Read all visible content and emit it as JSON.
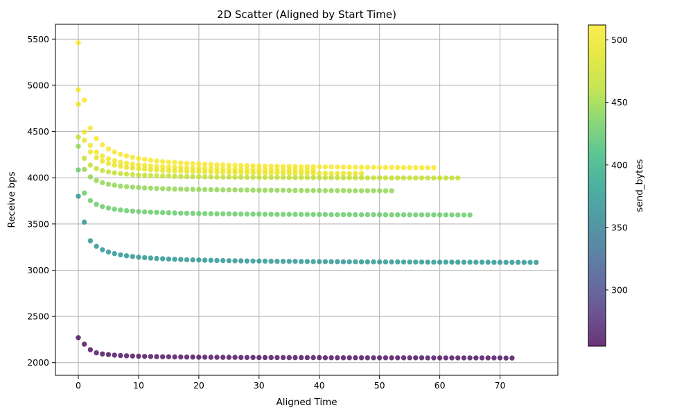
{
  "figure": {
    "title": "2D Scatter (Aligned by Start Time)",
    "background": "#ffffff"
  },
  "style": {
    "grid_color": "#b0b0b0",
    "spine_color": "#000000",
    "text_color": "#000000",
    "marker_opacity": 0.8,
    "marker_radius": 3.7
  },
  "chart_data": {
    "type": "scatter",
    "title": "2D Scatter (Aligned by Start Time)",
    "xlabel": "Aligned Time",
    "ylabel": "Receive bps",
    "grid": true,
    "xlim": [
      -3.8,
      79.6
    ],
    "ylim": [
      1863,
      5660
    ],
    "x_ticks": [
      0,
      10,
      20,
      30,
      40,
      50,
      60,
      70
    ],
    "y_ticks": [
      2000,
      2500,
      3000,
      3500,
      4000,
      4500,
      5000,
      5500
    ],
    "colorbar": {
      "label": "send_bytes",
      "vmin": 255,
      "vmax": 512,
      "ticks": [
        300,
        350,
        400,
        450,
        500
      ],
      "colormap": "viridis",
      "gradient": [
        [
          0.0,
          "#440154"
        ],
        [
          0.1,
          "#482878"
        ],
        [
          0.2,
          "#3e4989"
        ],
        [
          0.3,
          "#31688e"
        ],
        [
          0.4,
          "#26828e"
        ],
        [
          0.5,
          "#1f9e89"
        ],
        [
          0.6,
          "#35b779"
        ],
        [
          0.7,
          "#6ece58"
        ],
        [
          0.8,
          "#b5de2b"
        ],
        [
          0.9,
          "#dde318"
        ],
        [
          1.0,
          "#fde725"
        ]
      ]
    },
    "series": [
      {
        "id": "s1",
        "send_bytes": 508,
        "color": "#f8e621",
        "x_start": 0,
        "x_step": 1,
        "y": [
          5460,
          4840,
          4537,
          4424,
          4356,
          4311,
          4279,
          4254,
          4236,
          4221,
          4208,
          4198,
          4189,
          4182,
          4175,
          4170,
          4165,
          4160,
          4156,
          4153,
          4150,
          4147,
          4144,
          4141,
          4139,
          4137,
          4135,
          4133,
          4132,
          4130,
          4129,
          4127,
          4126,
          4125,
          4124,
          4123,
          4122,
          4121,
          4120,
          4119,
          4118,
          4117,
          4117,
          4116,
          4115,
          4114,
          4114,
          4113,
          4113,
          4112,
          4112,
          4111,
          4111,
          4110,
          4110,
          4109,
          4109,
          4108,
          4108,
          4108
        ]
      },
      {
        "id": "s2",
        "send_bytes": 501,
        "color": "#f1e51d",
        "x_start": 0,
        "x_step": 1,
        "y": [
          4950,
          4495,
          4350,
          4278,
          4234,
          4205,
          4184,
          4169,
          4157,
          4147,
          4139,
          4133,
          4127,
          4122,
          4118,
          4114,
          4111,
          4108,
          4106,
          4104,
          4101,
          4100,
          4098,
          4096,
          4095,
          4093,
          4092,
          4091,
          4090,
          4089,
          4088,
          4087,
          4086,
          4086,
          4085,
          4084,
          4084,
          4083,
          4082,
          4082
        ]
      },
      {
        "id": "s3",
        "send_bytes": 494,
        "color": "#e7e419",
        "x_start": 0,
        "x_step": 1,
        "y": [
          4795,
          4405,
          4280,
          4218,
          4180,
          4155,
          4137,
          4124,
          4113,
          4105,
          4098,
          4093,
          4088,
          4084,
          4080,
          4077,
          4074,
          4072,
          4069,
          4068,
          4066,
          4064,
          4063,
          4061,
          4060,
          4059,
          4058,
          4057,
          4056,
          4055,
          4054,
          4053,
          4053,
          4052,
          4051,
          4051,
          4050,
          4050,
          4049,
          4049,
          4048,
          4048,
          4047,
          4047,
          4047,
          4046,
          4046,
          4046
        ]
      },
      {
        "id": "s4",
        "send_bytes": 466,
        "color": "#c2df23",
        "x_start": 0,
        "x_step": 1,
        "y": [
          4440,
          4210,
          4137,
          4100,
          4078,
          4063,
          4053,
          4045,
          4039,
          4034,
          4030,
          4027,
          4024,
          4021,
          4019,
          4018,
          4016,
          4014,
          4013,
          4012,
          4011,
          4010,
          4009,
          4008,
          4008,
          4007,
          4006,
          4006,
          4005,
          4005,
          4004,
          4004,
          4003,
          4003,
          4003,
          4002,
          4002,
          4002,
          4001,
          4001,
          4001,
          4000,
          4000,
          4000,
          4000,
          4000,
          3999,
          3999,
          3999,
          3999,
          3999,
          3998,
          3998,
          3998,
          3998,
          3998,
          3998,
          3998,
          3997,
          3997,
          3997,
          3997,
          3997,
          3997
        ]
      },
      {
        "id": "s5",
        "send_bytes": 448,
        "color": "#8bd348",
        "x_start": 0,
        "x_step": 1,
        "y": [
          4340,
          4090,
          4010,
          3970,
          3946,
          3930,
          3919,
          3910,
          3903,
          3898,
          3894,
          3890,
          3887,
          3884,
          3882,
          3880,
          3878,
          3877,
          3875,
          3874,
          3873,
          3872,
          3871,
          3870,
          3869,
          3868,
          3868,
          3867,
          3867,
          3866,
          3865,
          3865,
          3865,
          3864,
          3864,
          3863,
          3863,
          3863,
          3862,
          3862,
          3862,
          3861,
          3861,
          3861,
          3861,
          3860,
          3860,
          3860,
          3860,
          3860,
          3859,
          3859,
          3859
        ]
      },
      {
        "id": "s6",
        "send_bytes": 425,
        "color": "#5ec962",
        "x_start": 0,
        "x_step": 1,
        "y": [
          4085,
          3835,
          3753,
          3713,
          3688,
          3672,
          3660,
          3651,
          3644,
          3639,
          3635,
          3631,
          3628,
          3625,
          3623,
          3621,
          3619,
          3617,
          3616,
          3615,
          3613,
          3612,
          3611,
          3610,
          3610,
          3609,
          3608,
          3608,
          3607,
          3606,
          3606,
          3605,
          3605,
          3604,
          3604,
          3604,
          3603,
          3603,
          3603,
          3602,
          3602,
          3602,
          3601,
          3601,
          3601,
          3601,
          3600,
          3600,
          3600,
          3600,
          3600,
          3599,
          3599,
          3599,
          3599,
          3599,
          3598,
          3598,
          3598,
          3598,
          3598,
          3598,
          3598,
          3597,
          3597,
          3597
        ]
      },
      {
        "id": "s7",
        "send_bytes": 375,
        "color": "#1f918d",
        "x_start": 0,
        "x_step": 1,
        "y": [
          3800,
          3520,
          3318,
          3258,
          3221,
          3197,
          3179,
          3166,
          3156,
          3148,
          3141,
          3136,
          3131,
          3127,
          3124,
          3121,
          3118,
          3116,
          3113,
          3112,
          3110,
          3108,
          3107,
          3105,
          3104,
          3103,
          3102,
          3101,
          3100,
          3099,
          3099,
          3098,
          3097,
          3096,
          3096,
          3095,
          3095,
          3094,
          3094,
          3093,
          3093,
          3092,
          3092,
          3092,
          3091,
          3091,
          3091,
          3090,
          3090,
          3090,
          3089,
          3089,
          3089,
          3089,
          3088,
          3088,
          3088,
          3088,
          3087,
          3087,
          3087,
          3087,
          3087,
          3086,
          3086,
          3086,
          3086,
          3086,
          3086,
          3085,
          3085,
          3085,
          3085,
          3085,
          3085,
          3085,
          3084
        ]
      },
      {
        "id": "s8",
        "send_bytes": 258,
        "color": "#46065a",
        "x_start": 0,
        "x_step": 1,
        "y": [
          2270,
          2200,
          2140,
          2106,
          2094,
          2087,
          2081,
          2077,
          2074,
          2071,
          2069,
          2067,
          2066,
          2065,
          2063,
          2063,
          2062,
          2061,
          2060,
          2060,
          2059,
          2059,
          2058,
          2058,
          2057,
          2057,
          2057,
          2056,
          2056,
          2056,
          2055,
          2055,
          2055,
          2055,
          2055,
          2054,
          2054,
          2054,
          2054,
          2054,
          2054,
          2053,
          2053,
          2053,
          2053,
          2053,
          2053,
          2053,
          2052,
          2052,
          2052,
          2052,
          2052,
          2052,
          2052,
          2052,
          2052,
          2052,
          2051,
          2051,
          2051,
          2051,
          2051,
          2051,
          2051,
          2051,
          2051,
          2051,
          2051,
          2051,
          2051,
          2050,
          2050
        ]
      }
    ]
  }
}
